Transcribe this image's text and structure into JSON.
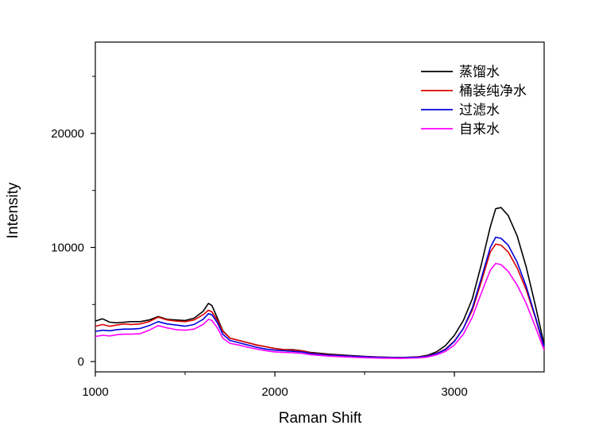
{
  "chart_data": {
    "type": "line",
    "title": "",
    "xlabel": "Raman Shift",
    "ylabel": "Intensity",
    "xlim": [
      1000,
      3500
    ],
    "ylim": [
      -900,
      28000
    ],
    "x_ticks": [
      1000,
      2000,
      3000
    ],
    "y_ticks": [
      0,
      10000,
      20000
    ],
    "x_tick_labels": [
      "1000",
      "2000",
      "3000"
    ],
    "y_tick_labels": [
      "0",
      "10000",
      "20000"
    ],
    "grid": false,
    "legend_position": "top-right",
    "series": [
      {
        "name": "蒸馏水",
        "color": "#000000",
        "points": [
          [
            1000,
            3550
          ],
          [
            1040,
            3750
          ],
          [
            1080,
            3450
          ],
          [
            1120,
            3400
          ],
          [
            1160,
            3450
          ],
          [
            1200,
            3500
          ],
          [
            1250,
            3500
          ],
          [
            1300,
            3650
          ],
          [
            1350,
            3950
          ],
          [
            1400,
            3700
          ],
          [
            1450,
            3650
          ],
          [
            1500,
            3600
          ],
          [
            1550,
            3800
          ],
          [
            1600,
            4400
          ],
          [
            1630,
            5100
          ],
          [
            1650,
            4900
          ],
          [
            1680,
            3800
          ],
          [
            1710,
            2700
          ],
          [
            1750,
            2050
          ],
          [
            1800,
            1850
          ],
          [
            1850,
            1650
          ],
          [
            1900,
            1450
          ],
          [
            1950,
            1300
          ],
          [
            2000,
            1150
          ],
          [
            2050,
            1050
          ],
          [
            2100,
            1050
          ],
          [
            2150,
            950
          ],
          [
            2200,
            800
          ],
          [
            2300,
            650
          ],
          [
            2400,
            550
          ],
          [
            2500,
            450
          ],
          [
            2600,
            380
          ],
          [
            2700,
            350
          ],
          [
            2800,
            420
          ],
          [
            2850,
            550
          ],
          [
            2900,
            850
          ],
          [
            2950,
            1400
          ],
          [
            3000,
            2300
          ],
          [
            3050,
            3600
          ],
          [
            3100,
            5500
          ],
          [
            3150,
            8500
          ],
          [
            3200,
            11800
          ],
          [
            3230,
            13400
          ],
          [
            3260,
            13500
          ],
          [
            3300,
            12800
          ],
          [
            3350,
            11000
          ],
          [
            3400,
            8300
          ],
          [
            3450,
            5000
          ],
          [
            3500,
            1500
          ]
        ]
      },
      {
        "name": "桶装纯净水",
        "color": "#e00000",
        "points": [
          [
            1000,
            3100
          ],
          [
            1040,
            3250
          ],
          [
            1080,
            3100
          ],
          [
            1120,
            3200
          ],
          [
            1160,
            3300
          ],
          [
            1200,
            3250
          ],
          [
            1250,
            3300
          ],
          [
            1300,
            3500
          ],
          [
            1350,
            3900
          ],
          [
            1400,
            3650
          ],
          [
            1450,
            3550
          ],
          [
            1500,
            3500
          ],
          [
            1550,
            3650
          ],
          [
            1600,
            4100
          ],
          [
            1630,
            4500
          ],
          [
            1650,
            4350
          ],
          [
            1680,
            3600
          ],
          [
            1710,
            2650
          ],
          [
            1750,
            2050
          ],
          [
            1800,
            1850
          ],
          [
            1850,
            1650
          ],
          [
            1900,
            1450
          ],
          [
            1950,
            1300
          ],
          [
            2000,
            1150
          ],
          [
            2050,
            1050
          ],
          [
            2100,
            1000
          ],
          [
            2150,
            950
          ],
          [
            2200,
            750
          ],
          [
            2300,
            600
          ],
          [
            2400,
            500
          ],
          [
            2500,
            430
          ],
          [
            2600,
            380
          ],
          [
            2700,
            350
          ],
          [
            2800,
            400
          ],
          [
            2850,
            500
          ],
          [
            2900,
            700
          ],
          [
            2950,
            1100
          ],
          [
            3000,
            1800
          ],
          [
            3050,
            2900
          ],
          [
            3100,
            4500
          ],
          [
            3150,
            7000
          ],
          [
            3200,
            9600
          ],
          [
            3230,
            10300
          ],
          [
            3260,
            10200
          ],
          [
            3300,
            9600
          ],
          [
            3350,
            8200
          ],
          [
            3400,
            6300
          ],
          [
            3450,
            3900
          ],
          [
            3500,
            1200
          ]
        ]
      },
      {
        "name": "过滤水",
        "color": "#0000dd",
        "points": [
          [
            1000,
            2650
          ],
          [
            1040,
            2750
          ],
          [
            1080,
            2700
          ],
          [
            1120,
            2800
          ],
          [
            1160,
            2850
          ],
          [
            1200,
            2850
          ],
          [
            1250,
            2900
          ],
          [
            1300,
            3150
          ],
          [
            1350,
            3500
          ],
          [
            1400,
            3300
          ],
          [
            1450,
            3200
          ],
          [
            1500,
            3100
          ],
          [
            1550,
            3250
          ],
          [
            1600,
            3700
          ],
          [
            1630,
            4200
          ],
          [
            1650,
            4100
          ],
          [
            1680,
            3400
          ],
          [
            1710,
            2400
          ],
          [
            1750,
            1850
          ],
          [
            1800,
            1650
          ],
          [
            1850,
            1450
          ],
          [
            1900,
            1250
          ],
          [
            1950,
            1100
          ],
          [
            2000,
            1000
          ],
          [
            2050,
            950
          ],
          [
            2100,
            900
          ],
          [
            2150,
            850
          ],
          [
            2200,
            700
          ],
          [
            2300,
            560
          ],
          [
            2400,
            480
          ],
          [
            2500,
            420
          ],
          [
            2600,
            370
          ],
          [
            2700,
            340
          ],
          [
            2800,
            380
          ],
          [
            2850,
            470
          ],
          [
            2900,
            680
          ],
          [
            2950,
            1050
          ],
          [
            3000,
            1750
          ],
          [
            3050,
            2900
          ],
          [
            3100,
            4700
          ],
          [
            3150,
            7300
          ],
          [
            3200,
            10000
          ],
          [
            3230,
            10900
          ],
          [
            3260,
            10800
          ],
          [
            3300,
            10200
          ],
          [
            3350,
            8700
          ],
          [
            3400,
            6600
          ],
          [
            3450,
            4000
          ],
          [
            3500,
            1300
          ]
        ]
      },
      {
        "name": "自来水",
        "color": "#ff00ff",
        "points": [
          [
            1000,
            2200
          ],
          [
            1040,
            2300
          ],
          [
            1080,
            2250
          ],
          [
            1120,
            2350
          ],
          [
            1160,
            2400
          ],
          [
            1200,
            2400
          ],
          [
            1250,
            2450
          ],
          [
            1300,
            2750
          ],
          [
            1350,
            3150
          ],
          [
            1400,
            2950
          ],
          [
            1450,
            2800
          ],
          [
            1500,
            2750
          ],
          [
            1550,
            2850
          ],
          [
            1600,
            3250
          ],
          [
            1630,
            3700
          ],
          [
            1650,
            3600
          ],
          [
            1680,
            2950
          ],
          [
            1710,
            2050
          ],
          [
            1750,
            1600
          ],
          [
            1800,
            1450
          ],
          [
            1850,
            1250
          ],
          [
            1900,
            1100
          ],
          [
            1950,
            950
          ],
          [
            2000,
            850
          ],
          [
            2050,
            800
          ],
          [
            2100,
            770
          ],
          [
            2150,
            720
          ],
          [
            2200,
            600
          ],
          [
            2300,
            480
          ],
          [
            2400,
            400
          ],
          [
            2500,
            340
          ],
          [
            2600,
            300
          ],
          [
            2700,
            280
          ],
          [
            2800,
            320
          ],
          [
            2850,
            400
          ],
          [
            2900,
            580
          ],
          [
            2950,
            900
          ],
          [
            3000,
            1450
          ],
          [
            3050,
            2400
          ],
          [
            3100,
            3900
          ],
          [
            3150,
            6000
          ],
          [
            3200,
            8000
          ],
          [
            3230,
            8600
          ],
          [
            3260,
            8500
          ],
          [
            3300,
            7900
          ],
          [
            3350,
            6700
          ],
          [
            3400,
            5100
          ],
          [
            3450,
            3100
          ],
          [
            3500,
            1000
          ]
        ]
      }
    ]
  }
}
